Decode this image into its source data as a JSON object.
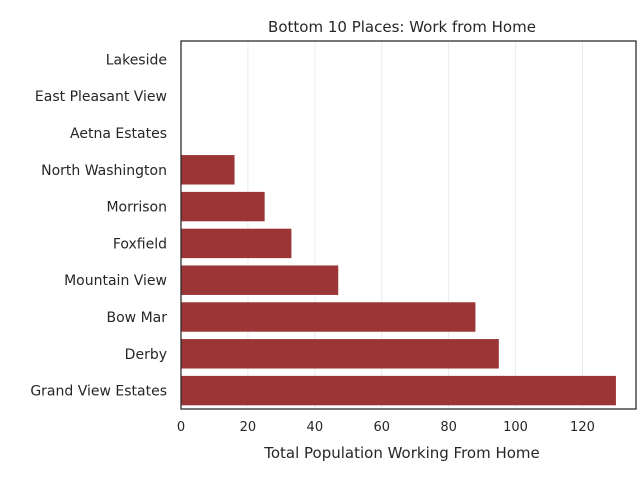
{
  "chart_data": {
    "type": "bar",
    "orientation": "horizontal",
    "title": "Bottom 10 Places: Work from Home",
    "xlabel": "Total Population Working From Home",
    "ylabel": "",
    "xlim": [
      0,
      136
    ],
    "xticks": [
      0,
      20,
      40,
      60,
      80,
      100,
      120
    ],
    "grid": true,
    "bar_color": "#9b3536",
    "categories": [
      "Lakeside",
      "East Pleasant View",
      "Aetna Estates",
      "North Washington",
      "Morrison",
      "Foxfield",
      "Mountain View",
      "Bow Mar",
      "Derby",
      "Grand View Estates"
    ],
    "values": [
      0,
      0,
      0,
      16,
      25,
      33,
      47,
      88,
      95,
      130
    ]
  }
}
